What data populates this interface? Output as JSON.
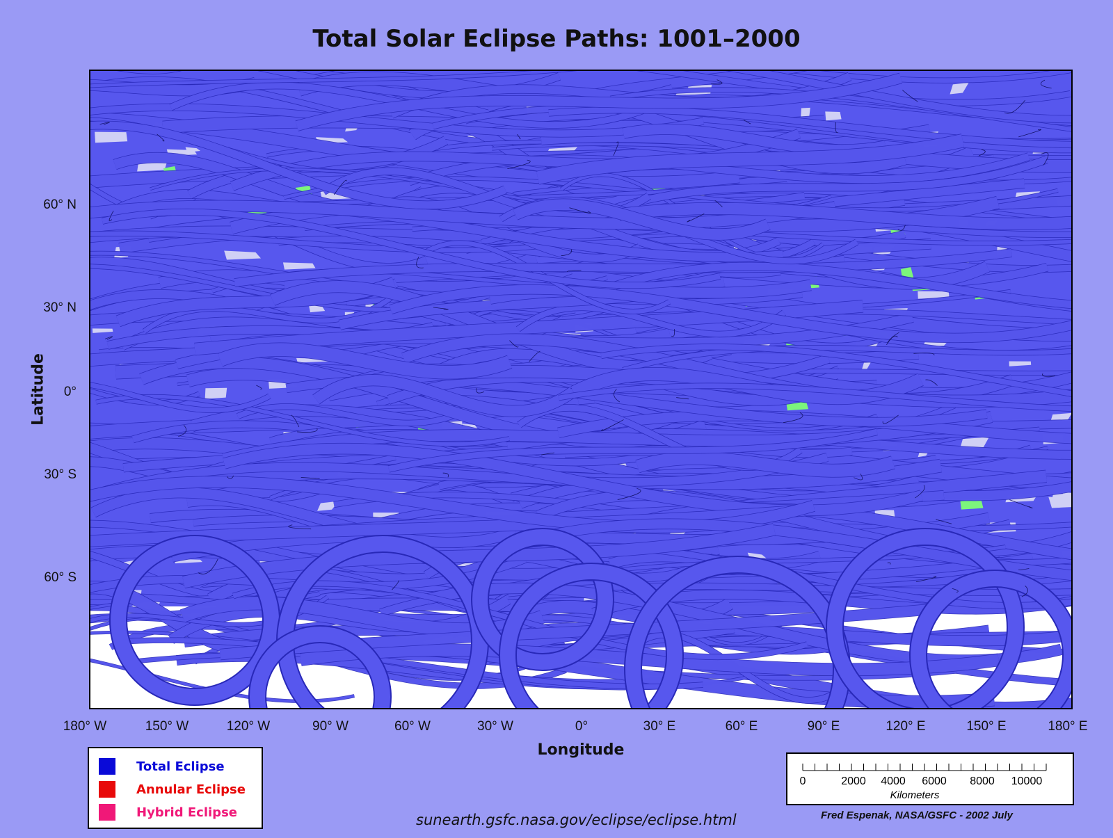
{
  "title": "Total Solar Eclipse Paths:  1001–2000",
  "axes": {
    "ylabel": "Latitude",
    "xlabel": "Longitude",
    "lat_ticks": [
      "60° N",
      "30° N",
      "0°",
      "30° S",
      "60° S"
    ],
    "lon_ticks": [
      "180° W",
      "150° W",
      "120° W",
      "90° W",
      "60° W",
      "30° W",
      "0°",
      "30° E",
      "60° E",
      "90° E",
      "120° E",
      "150° E",
      "180° E"
    ]
  },
  "legend": {
    "items": [
      {
        "label": "Total Eclipse",
        "color": "#0a0ad8"
      },
      {
        "label": "Annular Eclipse",
        "color": "#e80a0a"
      },
      {
        "label": "Hybrid Eclipse",
        "color": "#f01878"
      }
    ]
  },
  "scale_bar": {
    "ticks": [
      "0",
      "2000",
      "4000",
      "6000",
      "8000",
      "10000"
    ],
    "unit": "Kilometers"
  },
  "footer": {
    "url": "sunearth.gsfc.nasa.gov/eclipse/eclipse.html",
    "credit": "Fred Espenak, NASA/GSFC - 2002 July"
  },
  "colors": {
    "background": "#9a9af5",
    "path_fill": "#5757ee",
    "path_edge": "#2828b8",
    "land_uncovered": "#7cf57c",
    "ocean_uncovered": "#d0d0f5",
    "polar_uncovered": "#ffffff"
  }
}
